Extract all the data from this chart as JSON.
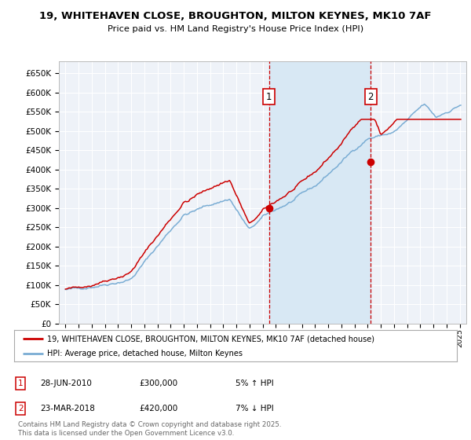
{
  "title_line1": "19, WHITEHAVEN CLOSE, BROUGHTON, MILTON KEYNES, MK10 7AF",
  "title_line2": "Price paid vs. HM Land Registry's House Price Index (HPI)",
  "legend_label_red": "19, WHITEHAVEN CLOSE, BROUGHTON, MILTON KEYNES, MK10 7AF (detached house)",
  "legend_label_blue": "HPI: Average price, detached house, Milton Keynes",
  "annotation1_label": "1",
  "annotation1_date": "28-JUN-2010",
  "annotation1_price": "£300,000",
  "annotation1_pct": "5% ↑ HPI",
  "annotation2_label": "2",
  "annotation2_date": "23-MAR-2018",
  "annotation2_price": "£420,000",
  "annotation2_pct": "7% ↓ HPI",
  "footer": "Contains HM Land Registry data © Crown copyright and database right 2025.\nThis data is licensed under the Open Government Licence v3.0.",
  "bg_color": "#ffffff",
  "plot_bg_color": "#eef2f8",
  "grid_color": "#ffffff",
  "red_color": "#cc0000",
  "blue_color": "#7aadd4",
  "shade_color": "#d8e8f4",
  "vline_color": "#cc0000",
  "ylim": [
    0,
    680000
  ],
  "ytick_step": 50000,
  "x_start_year": 1995,
  "x_end_year": 2025,
  "purchase1_year": 2010.49,
  "purchase1_value": 300000,
  "purchase2_year": 2018.23,
  "purchase2_value": 420000
}
